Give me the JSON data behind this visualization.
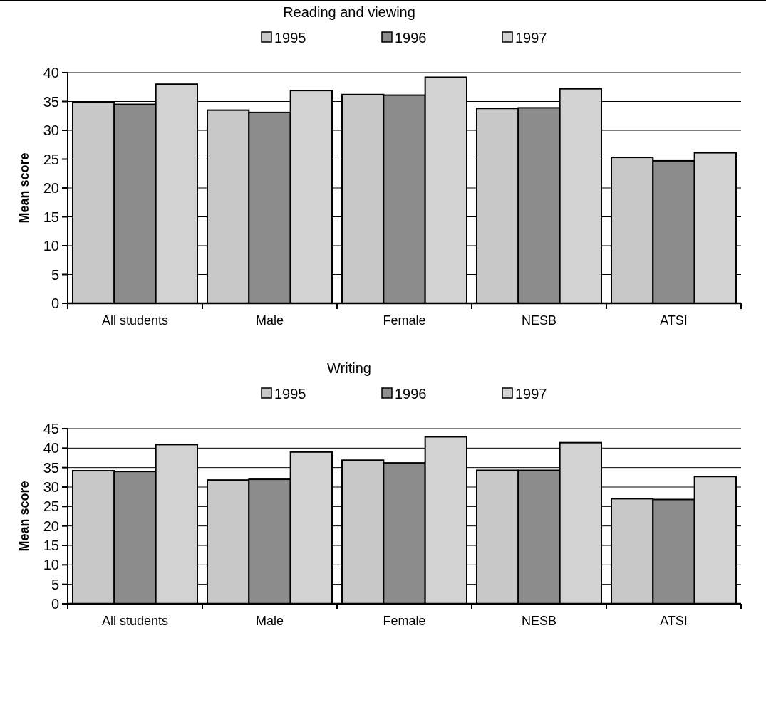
{
  "chart_data": [
    {
      "type": "bar",
      "title": "Reading and viewing",
      "ylabel": "Mean score",
      "categories": [
        "All students",
        "Male",
        "Female",
        "NESB",
        "ATSI"
      ],
      "ylim": [
        0,
        40
      ],
      "yticks": [
        0,
        5,
        10,
        15,
        20,
        25,
        30,
        35,
        40
      ],
      "grid": "y",
      "legend": "top",
      "series": [
        {
          "name": "1995",
          "color": "#c8c8c8",
          "values": [
            34.9,
            33.5,
            36.2,
            33.8,
            25.3
          ]
        },
        {
          "name": "1996",
          "color": "#8c8c8c",
          "values": [
            34.5,
            33.1,
            36.1,
            33.9,
            24.7
          ]
        },
        {
          "name": "1997",
          "color": "#d2d2d2",
          "values": [
            38.0,
            36.9,
            39.2,
            37.2,
            26.1
          ]
        }
      ]
    },
    {
      "type": "bar",
      "title": "Writing",
      "ylabel": "Mean score",
      "categories": [
        "All students",
        "Male",
        "Female",
        "NESB",
        "ATSI"
      ],
      "ylim": [
        0,
        45
      ],
      "yticks": [
        0,
        5,
        10,
        15,
        20,
        25,
        30,
        35,
        40,
        45
      ],
      "grid": "y",
      "legend": "top",
      "series": [
        {
          "name": "1995",
          "color": "#c8c8c8",
          "values": [
            34.2,
            31.8,
            36.9,
            34.3,
            27.0
          ]
        },
        {
          "name": "1996",
          "color": "#8c8c8c",
          "values": [
            34.0,
            32.0,
            36.2,
            34.3,
            26.8
          ]
        },
        {
          "name": "1997",
          "color": "#d2d2d2",
          "values": [
            40.9,
            39.0,
            42.9,
            41.4,
            32.7
          ]
        }
      ]
    }
  ]
}
